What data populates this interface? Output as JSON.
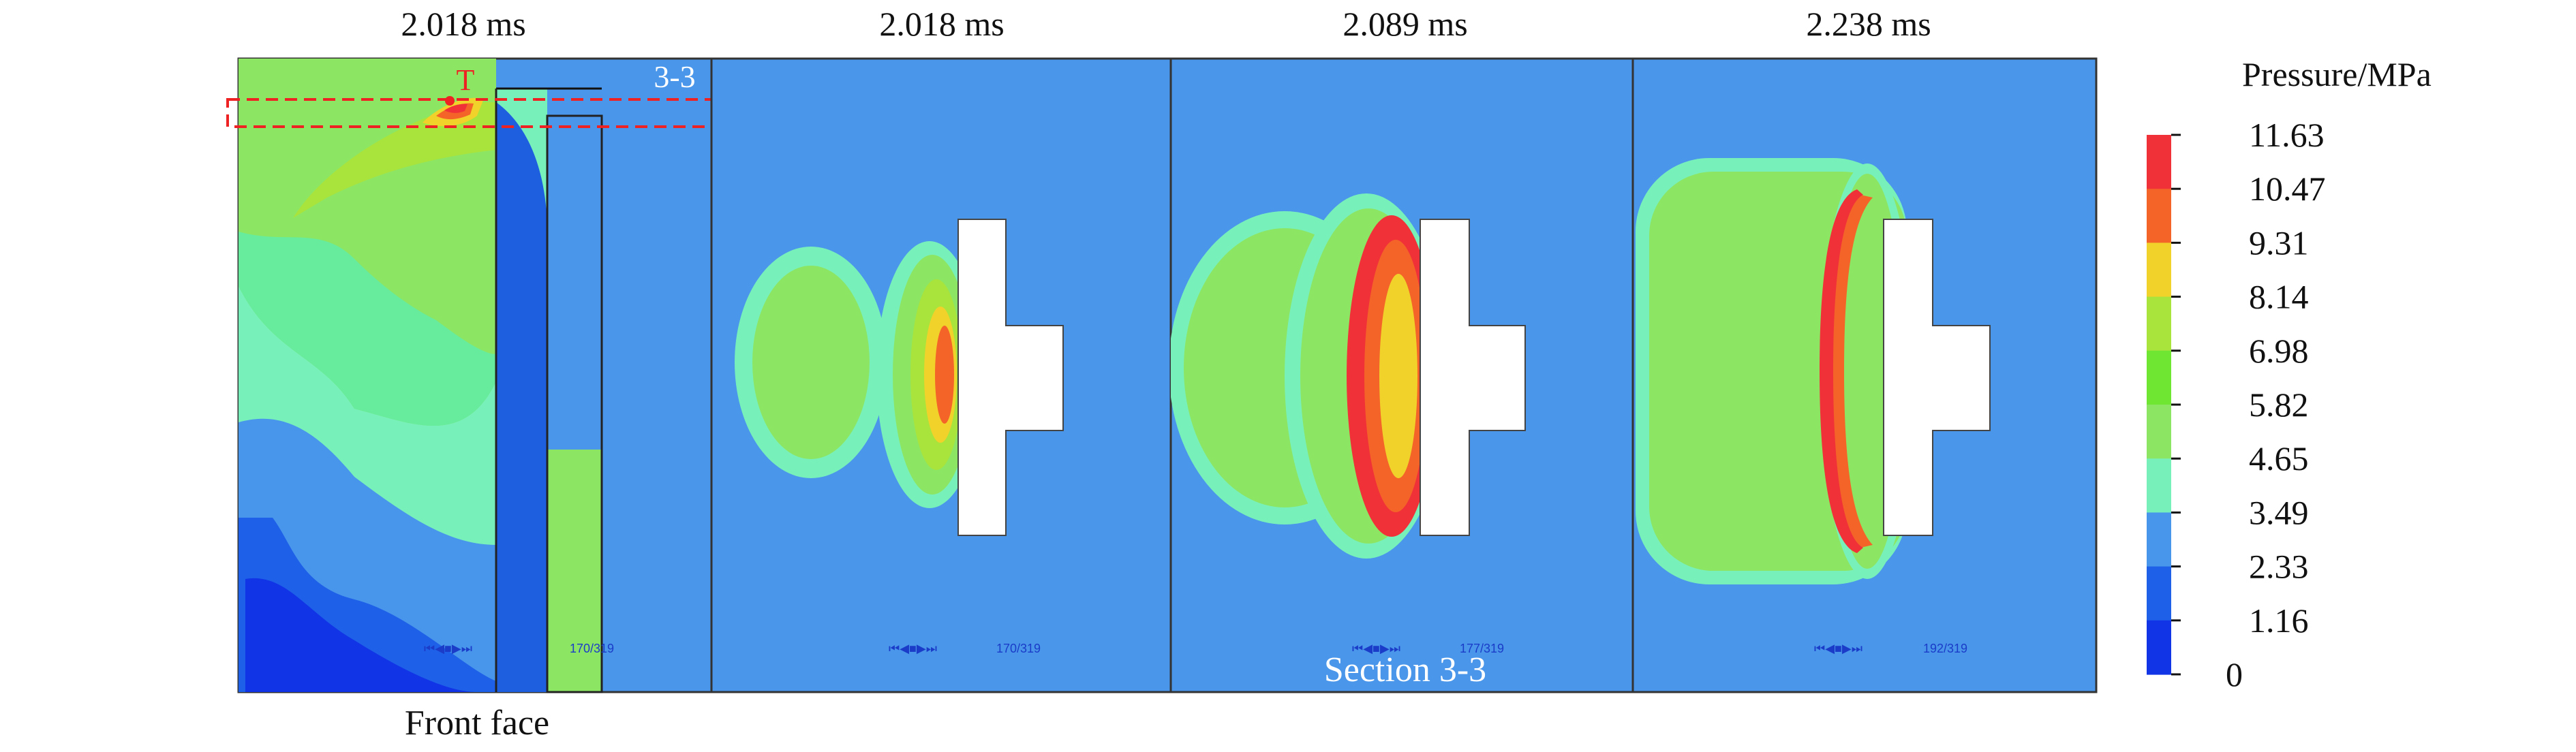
{
  "panels": [
    {
      "time_label": "2.018 ms",
      "frame_counter": "170/319"
    },
    {
      "time_label": "2.018 ms",
      "frame_counter": "170/319"
    },
    {
      "time_label": "2.089 ms",
      "frame_counter": "177/319"
    },
    {
      "time_label": "2.238 ms",
      "frame_counter": "192/319"
    }
  ],
  "annotations": {
    "point_label": "T",
    "section_label": "3-3",
    "front_face_caption": "Front face",
    "section_caption": "Section 3-3",
    "player_glyph": "⏮◀■▶⏭"
  },
  "colorbar": {
    "title": "Pressure/MPa",
    "ticks": [
      "11.63",
      "10.47",
      "9.31",
      "8.14",
      "6.98",
      "5.82",
      "4.65",
      "3.49",
      "2.33",
      "1.16",
      "0"
    ],
    "colors": [
      "#f03238",
      "#f46428",
      "#f0d22a",
      "#a8e43c",
      "#6ee632",
      "#8ce664",
      "#78f0ba",
      "#4896eb",
      "#1e60e8",
      "#1034e6"
    ]
  },
  "colors": {
    "background_field": "#4a96ea",
    "panel_border": "#333333",
    "section_marker": "#ee2222",
    "counter_text": "#1a3cc8"
  }
}
